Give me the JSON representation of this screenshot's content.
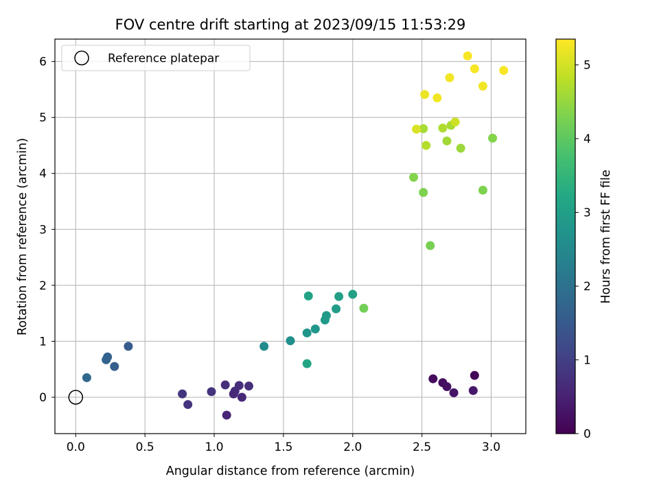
{
  "chart_data": {
    "type": "scatter",
    "title": "FOV centre drift starting at 2023/09/15 11:53:29",
    "xlabel": "Angular distance from reference (arcmin)",
    "ylabel": "Rotation from reference (arcmin)",
    "xlim": [
      -0.15,
      3.25
    ],
    "ylim": [
      -0.65,
      6.4
    ],
    "xticks": [
      0.0,
      0.5,
      1.0,
      1.5,
      2.0,
      2.5,
      3.0
    ],
    "xtick_labels": [
      "0.0",
      "0.5",
      "1.0",
      "1.5",
      "2.0",
      "2.5",
      "3.0"
    ],
    "yticks": [
      0,
      1,
      2,
      3,
      4,
      5,
      6
    ],
    "ytick_labels": [
      "0",
      "1",
      "2",
      "3",
      "4",
      "5",
      "6"
    ],
    "grid": true,
    "legend": {
      "placement": "upper-left",
      "entries": [
        "Reference platepar"
      ]
    },
    "reference_point": {
      "x": 0.0,
      "y": 0.0
    },
    "colorbar": {
      "label": "Hours from first FF file",
      "colormap": "viridis",
      "range": [
        0,
        5.35
      ],
      "ticks": [
        0,
        1,
        2,
        3,
        4,
        5
      ],
      "tick_labels": [
        "0",
        "1",
        "2",
        "3",
        "4",
        "5"
      ]
    },
    "points": [
      {
        "x": 2.88,
        "y": 0.39,
        "c": 0.05
      },
      {
        "x": 2.58,
        "y": 0.33,
        "c": 0.15
      },
      {
        "x": 2.65,
        "y": 0.26,
        "c": 0.2
      },
      {
        "x": 2.68,
        "y": 0.19,
        "c": 0.25
      },
      {
        "x": 2.73,
        "y": 0.08,
        "c": 0.3
      },
      {
        "x": 2.87,
        "y": 0.12,
        "c": 0.35
      },
      {
        "x": 1.09,
        "y": -0.32,
        "c": 0.55
      },
      {
        "x": 1.2,
        "y": 0.0,
        "c": 0.6
      },
      {
        "x": 1.14,
        "y": 0.06,
        "c": 0.62
      },
      {
        "x": 1.15,
        "y": 0.11,
        "c": 0.65
      },
      {
        "x": 1.18,
        "y": 0.21,
        "c": 0.68
      },
      {
        "x": 1.25,
        "y": 0.2,
        "c": 0.7
      },
      {
        "x": 1.08,
        "y": 0.22,
        "c": 0.72
      },
      {
        "x": 0.98,
        "y": 0.1,
        "c": 0.78
      },
      {
        "x": 0.81,
        "y": -0.13,
        "c": 0.8
      },
      {
        "x": 0.77,
        "y": 0.06,
        "c": 0.82
      },
      {
        "x": 0.38,
        "y": 0.91,
        "c": 1.55
      },
      {
        "x": 0.28,
        "y": 0.55,
        "c": 1.6
      },
      {
        "x": 0.23,
        "y": 0.72,
        "c": 1.65
      },
      {
        "x": 0.22,
        "y": 0.67,
        "c": 1.7
      },
      {
        "x": 0.08,
        "y": 0.35,
        "c": 1.8
      },
      {
        "x": 1.36,
        "y": 0.91,
        "c": 2.55
      },
      {
        "x": 1.55,
        "y": 1.01,
        "c": 2.65
      },
      {
        "x": 1.67,
        "y": 1.15,
        "c": 2.75
      },
      {
        "x": 1.73,
        "y": 1.22,
        "c": 2.8
      },
      {
        "x": 1.8,
        "y": 1.38,
        "c": 2.85
      },
      {
        "x": 1.81,
        "y": 1.46,
        "c": 2.9
      },
      {
        "x": 1.88,
        "y": 1.58,
        "c": 2.95
      },
      {
        "x": 1.9,
        "y": 1.8,
        "c": 3.0
      },
      {
        "x": 2.0,
        "y": 1.84,
        "c": 3.05
      },
      {
        "x": 1.68,
        "y": 1.81,
        "c": 3.1
      },
      {
        "x": 1.67,
        "y": 0.6,
        "c": 3.15
      },
      {
        "x": 2.08,
        "y": 1.59,
        "c": 4.2
      },
      {
        "x": 2.56,
        "y": 2.71,
        "c": 4.25
      },
      {
        "x": 2.51,
        "y": 3.66,
        "c": 4.3
      },
      {
        "x": 2.44,
        "y": 3.93,
        "c": 4.35
      },
      {
        "x": 2.94,
        "y": 3.7,
        "c": 4.3
      },
      {
        "x": 3.01,
        "y": 4.63,
        "c": 4.35
      },
      {
        "x": 2.78,
        "y": 4.45,
        "c": 4.55
      },
      {
        "x": 2.68,
        "y": 4.58,
        "c": 4.6
      },
      {
        "x": 2.53,
        "y": 4.5,
        "c": 4.75
      },
      {
        "x": 2.51,
        "y": 4.8,
        "c": 4.65
      },
      {
        "x": 2.65,
        "y": 4.81,
        "c": 4.7
      },
      {
        "x": 2.71,
        "y": 4.86,
        "c": 4.65
      },
      {
        "x": 2.46,
        "y": 4.79,
        "c": 5.05
      },
      {
        "x": 2.74,
        "y": 4.92,
        "c": 4.95
      },
      {
        "x": 2.52,
        "y": 5.41,
        "c": 5.2
      },
      {
        "x": 2.61,
        "y": 5.35,
        "c": 5.25
      },
      {
        "x": 2.7,
        "y": 5.71,
        "c": 5.25
      },
      {
        "x": 2.83,
        "y": 6.1,
        "c": 5.3
      },
      {
        "x": 2.88,
        "y": 5.87,
        "c": 5.3
      },
      {
        "x": 2.94,
        "y": 5.56,
        "c": 5.25
      },
      {
        "x": 3.09,
        "y": 5.84,
        "c": 5.3
      }
    ]
  }
}
